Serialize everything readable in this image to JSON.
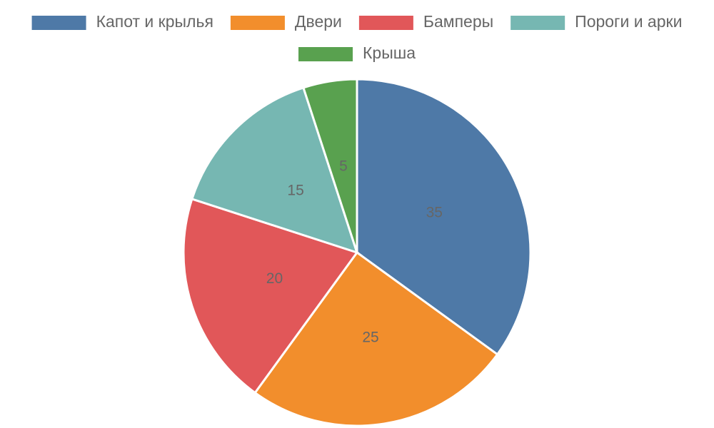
{
  "chart_data": {
    "type": "pie",
    "categories": [
      "Капот и крылья",
      "Двери",
      "Бамперы",
      "Пороги и арки",
      "Крыша"
    ],
    "values": [
      35,
      25,
      20,
      15,
      5
    ],
    "colors": [
      "#4e79a7",
      "#f28e2c",
      "#e15759",
      "#76b7b2",
      "#59a14f"
    ],
    "legend": "top"
  }
}
